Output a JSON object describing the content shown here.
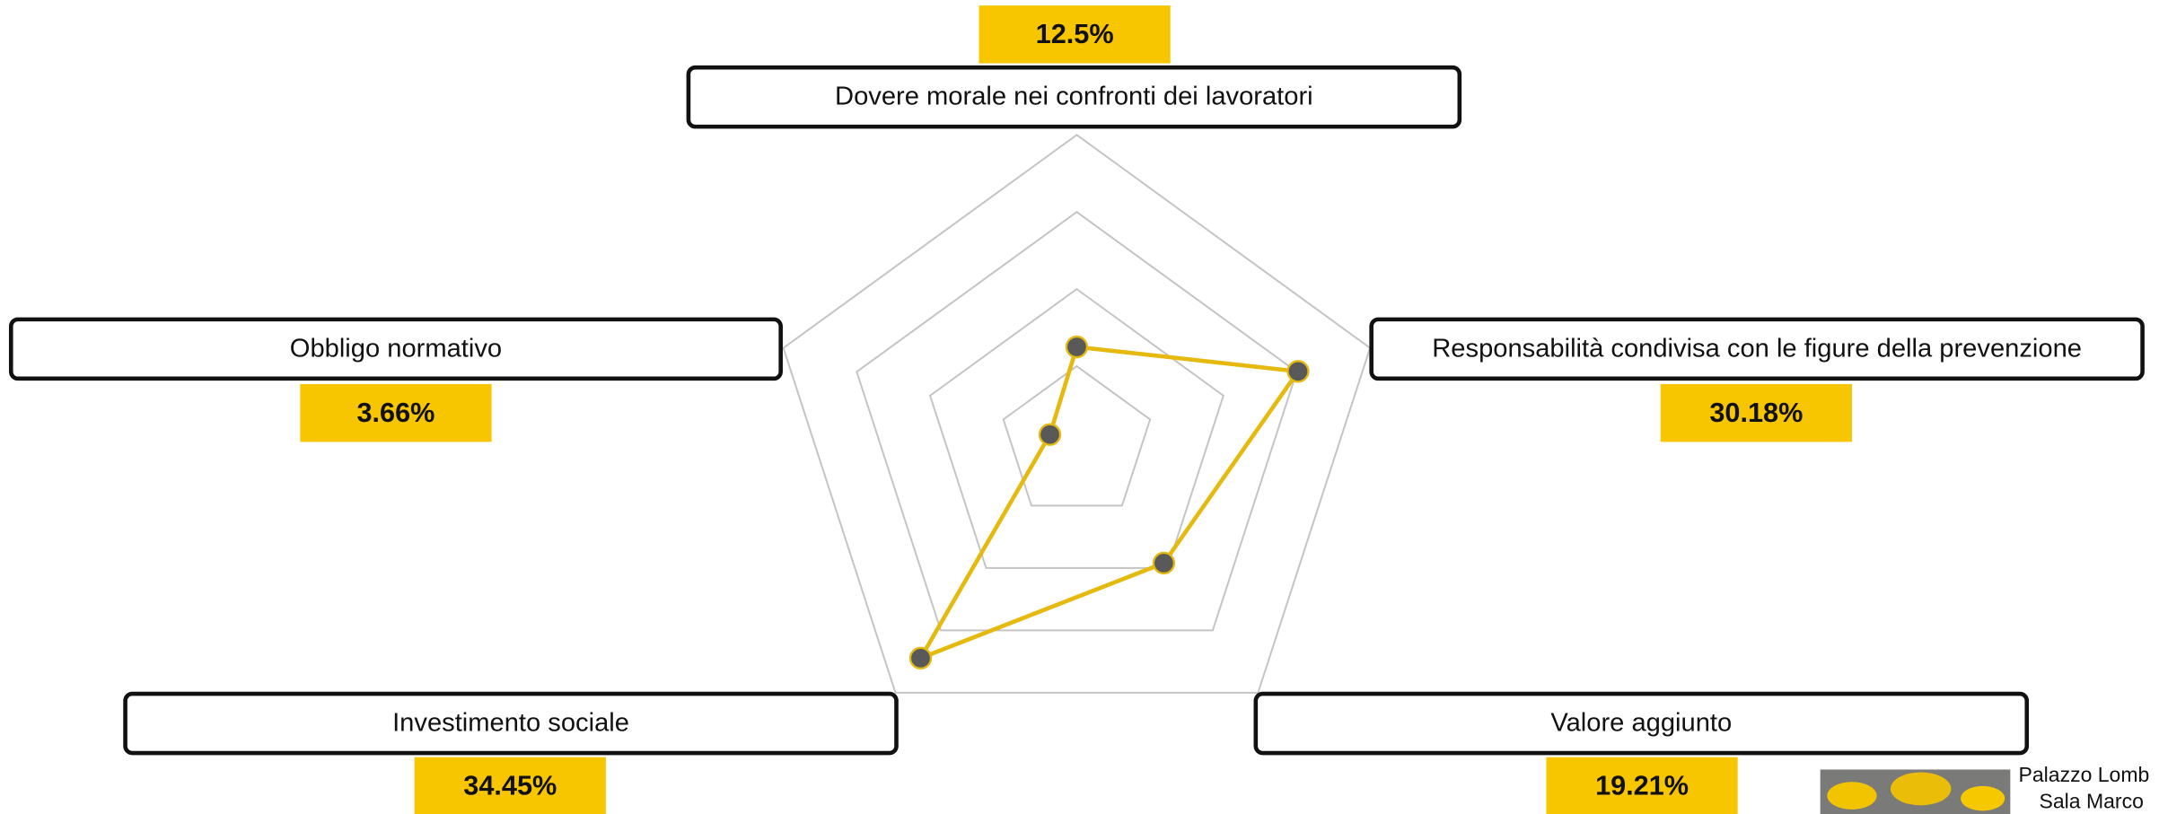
{
  "chart_data": {
    "type": "radar",
    "categories": [
      "Dovere morale nei confronti dei lavoratori",
      "Responsabilità condivisa con le figure della prevenzione",
      "Valore aggiunto",
      "Investimento sociale",
      "Obbligo normativo"
    ],
    "values": [
      12.5,
      30.18,
      19.21,
      34.45,
      3.66
    ],
    "value_labels": [
      "12.5%",
      "30.18%",
      "19.21%",
      "34.45%",
      "3.66%"
    ],
    "color": "#e6b90f",
    "marker_color": "#595959",
    "label_fill": "#f7c600",
    "ylim": [
      0,
      40
    ],
    "yticks": [
      10,
      20,
      30,
      40
    ],
    "grid": true
  },
  "footer": {
    "lines": [
      "Palazzo Lomb",
      "Sala Marco"
    ]
  }
}
